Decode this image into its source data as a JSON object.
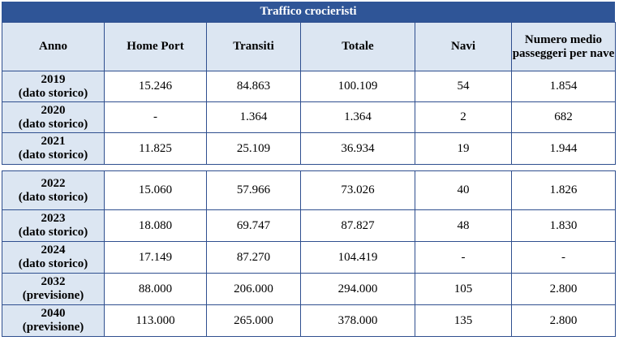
{
  "title": "Traffico crocieristi",
  "header": [
    "Anno",
    "Home Port",
    "Transiti",
    "Totale",
    "Navi",
    "Numero medio passeggeri per nave"
  ],
  "tables": [
    {
      "rows": [
        {
          "year": "2019",
          "note": "(dato storico)",
          "cells": [
            "15.246",
            "84.863",
            "100.109",
            "54",
            "1.854"
          ]
        },
        {
          "year": "2020",
          "note": "(dato storico)",
          "cells": [
            "-",
            "1.364",
            "1.364",
            "2",
            "682"
          ]
        },
        {
          "year": "2021",
          "note": "(dato storico)",
          "cells": [
            "11.825",
            "25.109",
            "36.934",
            "19",
            "1.944"
          ]
        }
      ]
    },
    {
      "rows": [
        {
          "year": "2022",
          "note": "(dato storico)",
          "cells": [
            "15.060",
            "57.966",
            "73.026",
            "40",
            "1.826"
          ]
        },
        {
          "year": "2023",
          "note": "(dato storico)",
          "cells": [
            "18.080",
            "69.747",
            "87.827",
            "48",
            "1.830"
          ]
        },
        {
          "year": "2024",
          "note": "(dato storico)",
          "cells": [
            "17.149",
            "87.270",
            "104.419",
            "-",
            "-"
          ]
        },
        {
          "year": "2032",
          "note": "(previsione)",
          "cells": [
            "88.000",
            "206.000",
            "294.000",
            "105",
            "2.800"
          ]
        },
        {
          "year": "2040",
          "note": "(previsione)",
          "cells": [
            "113.000",
            "265.000",
            "378.000",
            "135",
            "2.800"
          ]
        }
      ]
    }
  ]
}
